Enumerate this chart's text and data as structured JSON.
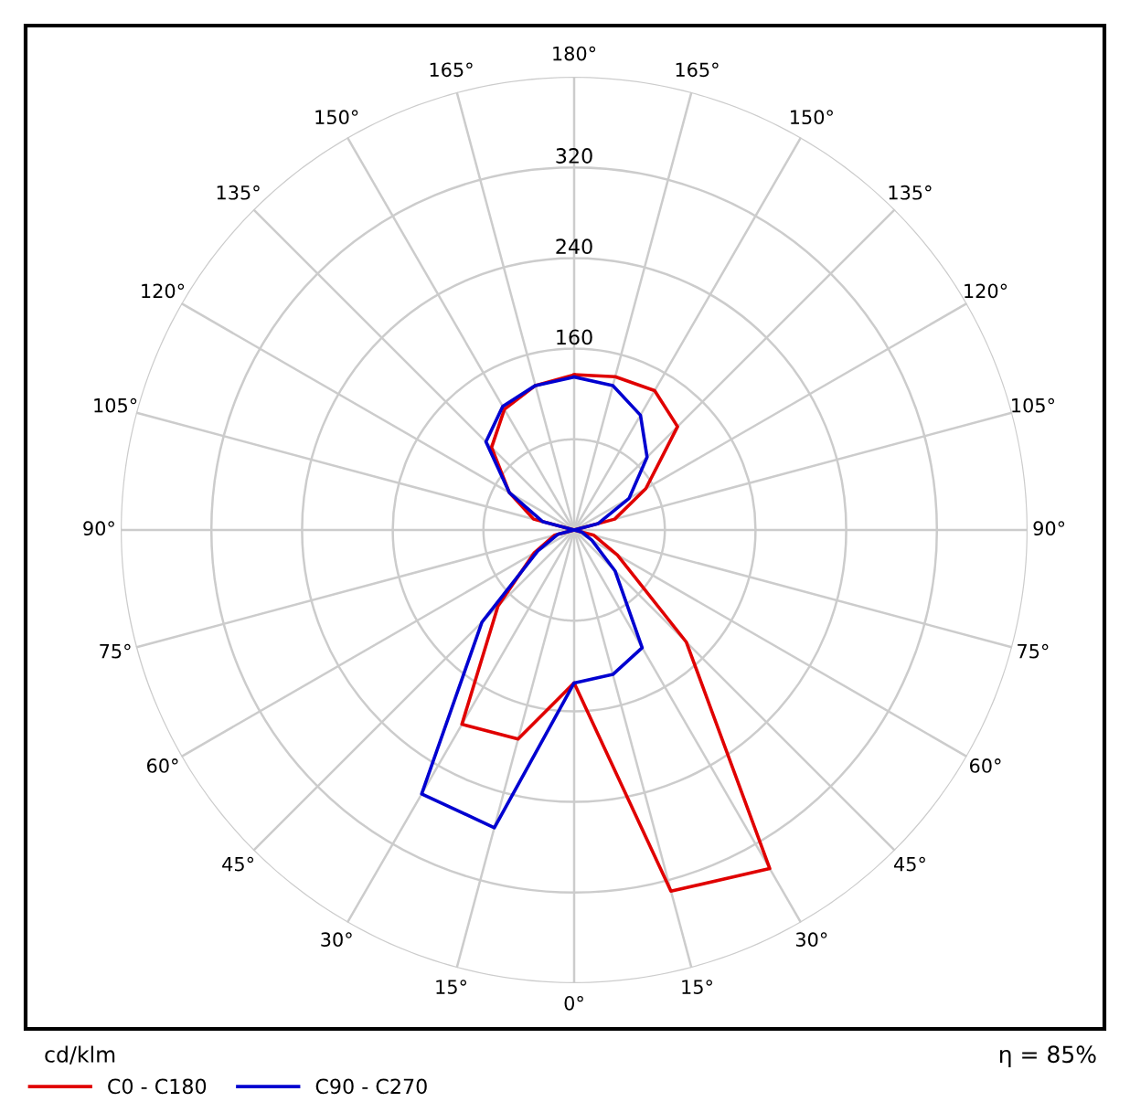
{
  "chart_data": {
    "type": "radar",
    "categories": [
      "180°",
      "165°",
      "150°",
      "135°",
      "120°",
      "105°",
      "90°",
      "75°",
      "60°",
      "45°",
      "30°",
      "15°",
      "0°",
      "15°",
      "30°",
      "45°",
      "60°",
      "75°",
      "90°",
      "105°",
      "120°",
      "135°",
      "150°",
      "165°"
    ],
    "series": [
      {
        "name": "C0 - C180",
        "color": "#e00000",
        "values": [
          137,
          140,
          142,
          129,
          73,
          37,
          0,
          18,
          44,
          140,
          345,
          330,
          135,
          191,
          198,
          95,
          41,
          18,
          0,
          37,
          66,
          103,
          123,
          132
        ]
      },
      {
        "name": "C90 - C270",
        "color": "#0000d0",
        "values": [
          135,
          132,
          117,
          91,
          56,
          22,
          0,
          7,
          18,
          51,
          120,
          132,
          135,
          272,
          269,
          115,
          37,
          15,
          0,
          29,
          66,
          110,
          126,
          132
        ]
      }
    ],
    "ylim": [
      0,
      400
    ],
    "yticks": [
      160,
      240,
      320
    ],
    "ylabel": "cd/klm",
    "annotations": [
      "η = 85%"
    ],
    "grid": true,
    "legend": "bottom left",
    "line_style": "solid"
  }
}
